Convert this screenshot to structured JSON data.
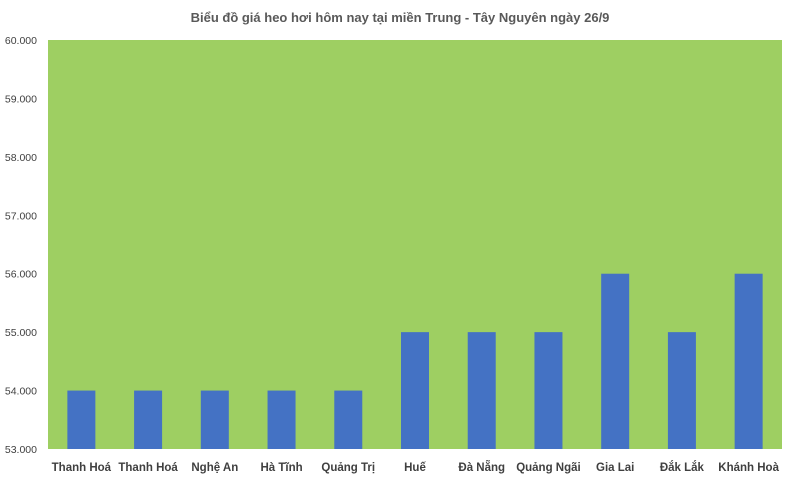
{
  "chart_data": {
    "type": "bar",
    "title": "Biểu đồ giá heo hơi hôm nay tại miền Trung - Tây Nguyên ngày 26/9",
    "categories": [
      "Thanh Hoá",
      "Thanh Hoá",
      "Nghệ An",
      "Hà Tĩnh",
      "Quảng Trị",
      "Huế",
      "Đà Nẵng",
      "Quảng Ngãi",
      "Gia Lai",
      "Đắk Lắk",
      "Khánh Hoà"
    ],
    "values": [
      54000,
      54000,
      54000,
      54000,
      54000,
      55000,
      55000,
      55000,
      56000,
      55000,
      56000
    ],
    "ylim": [
      53000,
      60000
    ],
    "yticks": [
      "53.000",
      "54.000",
      "55.000",
      "56.000",
      "57.000",
      "58.000",
      "59.000",
      "60.000"
    ],
    "xlabel": "",
    "ylabel": "",
    "grid": false,
    "colors": {
      "bar": "#4472C4",
      "plot_background": "#9ECF62"
    }
  }
}
